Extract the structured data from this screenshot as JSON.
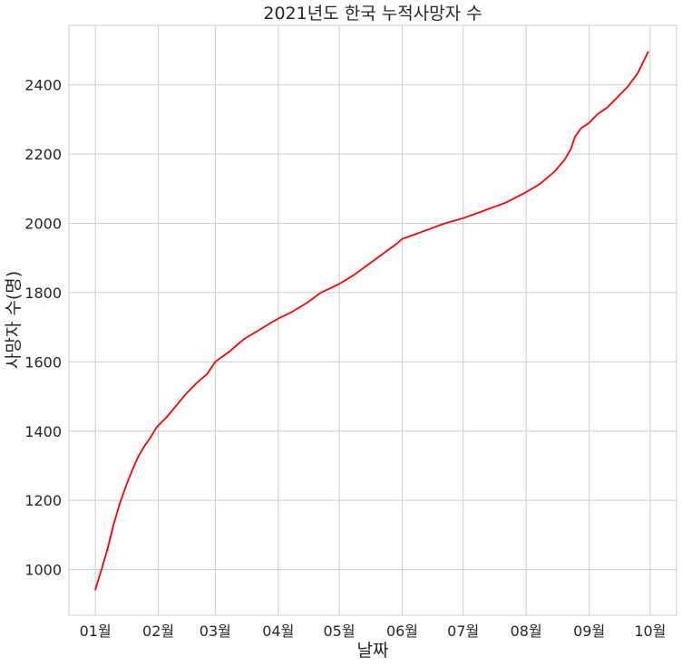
{
  "chart_data": {
    "type": "line",
    "title": "2021년도 한국 누적사망자 수",
    "xlabel": "날짜",
    "ylabel": "사망자 수(명)",
    "x_ticks": [
      "2021-01-01",
      "2021-02-01",
      "2021-03-01",
      "2021-04-01",
      "2021-05-01",
      "2021-06-01",
      "2021-07-01",
      "2021-08-01",
      "2021-09-01",
      "2021-10-01"
    ],
    "x_tick_labels": [
      "01월",
      "02월",
      "03월",
      "04월",
      "05월",
      "06월",
      "07월",
      "08월",
      "09월",
      "10월"
    ],
    "xlim": [
      "2020-12-19",
      "2021-10-14"
    ],
    "ylim": [
      868,
      2572
    ],
    "y_ticks": [
      1000,
      1200,
      1400,
      1600,
      1800,
      2000,
      2200,
      2400
    ],
    "grid": true,
    "series": [
      {
        "color": "#ff0000",
        "x": [
          "2021-01-01",
          "2021-01-04",
          "2021-01-07",
          "2021-01-10",
          "2021-01-13",
          "2021-01-16",
          "2021-01-19",
          "2021-01-22",
          "2021-01-25",
          "2021-01-28",
          "2021-01-31",
          "2021-02-05",
          "2021-02-10",
          "2021-02-15",
          "2021-02-20",
          "2021-02-25",
          "2021-03-01",
          "2021-03-08",
          "2021-03-15",
          "2021-03-22",
          "2021-03-29",
          "2021-04-01",
          "2021-04-08",
          "2021-04-15",
          "2021-04-22",
          "2021-05-01",
          "2021-05-08",
          "2021-05-15",
          "2021-05-22",
          "2021-05-29",
          "2021-06-01",
          "2021-06-08",
          "2021-06-15",
          "2021-06-22",
          "2021-07-01",
          "2021-07-08",
          "2021-07-15",
          "2021-07-22",
          "2021-08-01",
          "2021-08-08",
          "2021-08-15",
          "2021-08-20",
          "2021-08-23",
          "2021-08-25",
          "2021-08-28",
          "2021-09-01",
          "2021-09-05",
          "2021-09-10",
          "2021-09-15",
          "2021-09-20",
          "2021-09-25",
          "2021-09-30"
        ],
        "y": [
          942,
          1000,
          1060,
          1130,
          1190,
          1240,
          1285,
          1325,
          1355,
          1380,
          1410,
          1440,
          1475,
          1510,
          1540,
          1565,
          1600,
          1630,
          1665,
          1690,
          1715,
          1725,
          1745,
          1770,
          1800,
          1825,
          1850,
          1880,
          1910,
          1940,
          1955,
          1970,
          1985,
          2000,
          2015,
          2030,
          2045,
          2060,
          2090,
          2115,
          2150,
          2185,
          2215,
          2250,
          2275,
          2290,
          2315,
          2335,
          2365,
          2395,
          2435,
          2495
        ]
      }
    ]
  }
}
